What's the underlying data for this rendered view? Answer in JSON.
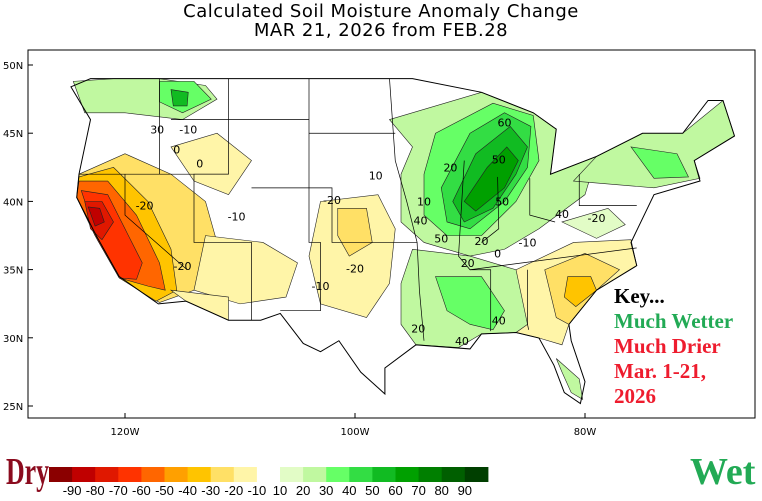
{
  "title": {
    "line1": "Calculated Soil Moisture Anomaly Change",
    "line2": "MAR 21, 2026 from FEB.28"
  },
  "axes": {
    "lat_labels": [
      "50N",
      "45N",
      "40N",
      "35N",
      "30N",
      "25N"
    ],
    "lon_labels": [
      "120W",
      "100W",
      "80W"
    ]
  },
  "contour_labels": [
    "30",
    "-10",
    "0",
    "0",
    "-20",
    "-10",
    "-20",
    "-20",
    "-10",
    "-20",
    "10",
    "20",
    "10",
    "40",
    "60",
    "50",
    "50",
    "40",
    "50",
    "20",
    "-10",
    "-20",
    "20",
    "0",
    "40",
    "20",
    "40"
  ],
  "key": {
    "heading": "Key...",
    "wetter": "Much Wetter",
    "drier": "Much Drier",
    "period": "Mar. 1-21,",
    "year": "2026",
    "colors": {
      "heading": "#000000",
      "wetter": "#22aa55",
      "drier": "#ee1c2e",
      "period": "#ee1c2e"
    }
  },
  "colorbar": {
    "dry_label": "Dry",
    "wet_label": "Wet",
    "tick_labels": [
      "-90",
      "-80",
      "-70",
      "-60",
      "-50",
      "-40",
      "-30",
      "-20",
      "-10",
      "10",
      "20",
      "30",
      "40",
      "50",
      "60",
      "70",
      "80",
      "90"
    ],
    "colors": [
      "#8b0000",
      "#c00000",
      "#e01800",
      "#ff3300",
      "#ff6600",
      "#ffa000",
      "#ffc400",
      "#ffe066",
      "#fff5a8",
      "#ffffff",
      "#e2fcc6",
      "#c0f8a0",
      "#66ff66",
      "#33dd44",
      "#11bb22",
      "#00a000",
      "#007f00",
      "#005f00",
      "#003f00"
    ]
  }
}
